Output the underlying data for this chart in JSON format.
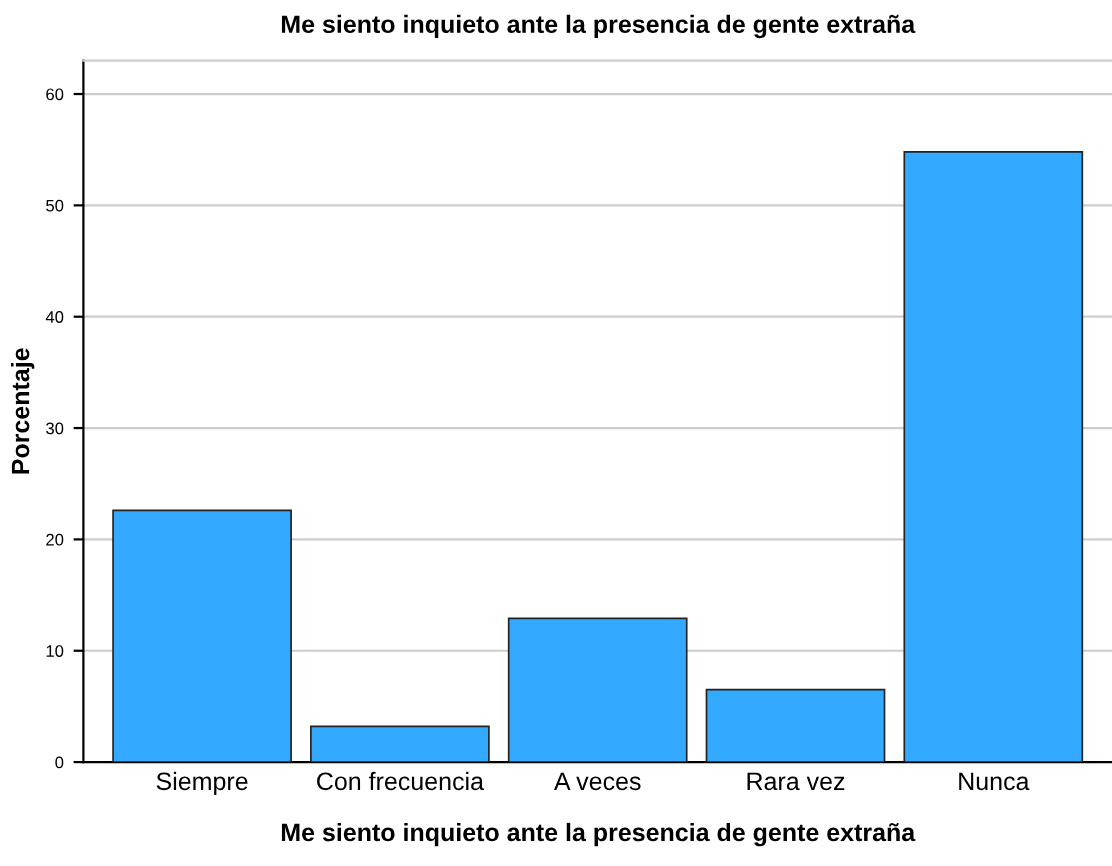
{
  "chart_data": {
    "type": "bar",
    "title": "Me siento inquieto ante la presencia de gente extraña",
    "xlabel": "Me siento inquieto ante la presencia de gente extraña",
    "ylabel": "Porcentaje",
    "categories": [
      "Siempre",
      "Con frecuencia",
      "A veces",
      "Rara vez",
      "Nunca"
    ],
    "values": [
      22.6,
      3.2,
      12.9,
      6.5,
      54.8
    ],
    "color": "#33aaff",
    "ylim": [
      0,
      63
    ],
    "yticks": [
      0,
      10,
      20,
      30,
      40,
      50,
      60
    ],
    "grid": "y"
  }
}
